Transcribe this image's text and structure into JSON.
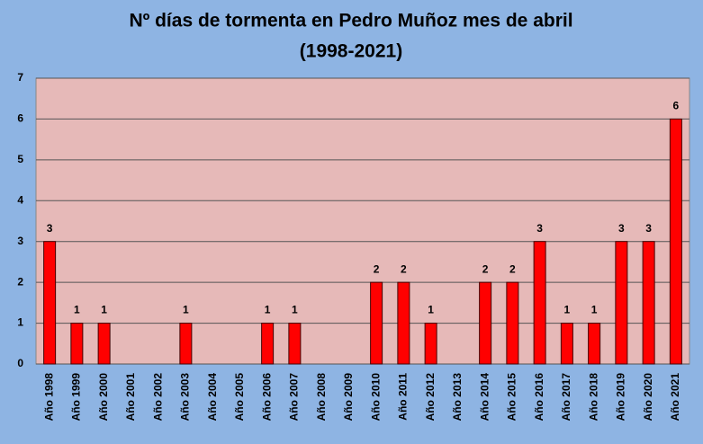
{
  "chart_data": {
    "type": "bar",
    "title": [
      "Nº días de tormenta en Pedro Muñoz mes de abril",
      "(1998-2021)"
    ],
    "categories": [
      "Año 1998",
      "Año 1999",
      "Año 2000",
      "Año 2001",
      "Año 2002",
      "Año 2003",
      "Año 2004",
      "Año 2005",
      "Año 2006",
      "Año 2007",
      "Año 2008",
      "Año 2009",
      "Año 2010",
      "Año 2011",
      "Año 2012",
      "Año 2013",
      "Año 2014",
      "Año 2015",
      "Año 2016",
      "Año 2017",
      "Año 2018",
      "Año 2019",
      "Año 2020",
      "Año 2021"
    ],
    "values": [
      3,
      1,
      1,
      0,
      0,
      1,
      0,
      0,
      1,
      1,
      0,
      0,
      2,
      2,
      1,
      0,
      2,
      2,
      3,
      1,
      1,
      3,
      3,
      6
    ],
    "color": "#ff0000",
    "ylim": [
      0,
      7
    ],
    "yticks": [
      0,
      1,
      2,
      3,
      4,
      5,
      6,
      7
    ],
    "grid": true
  }
}
